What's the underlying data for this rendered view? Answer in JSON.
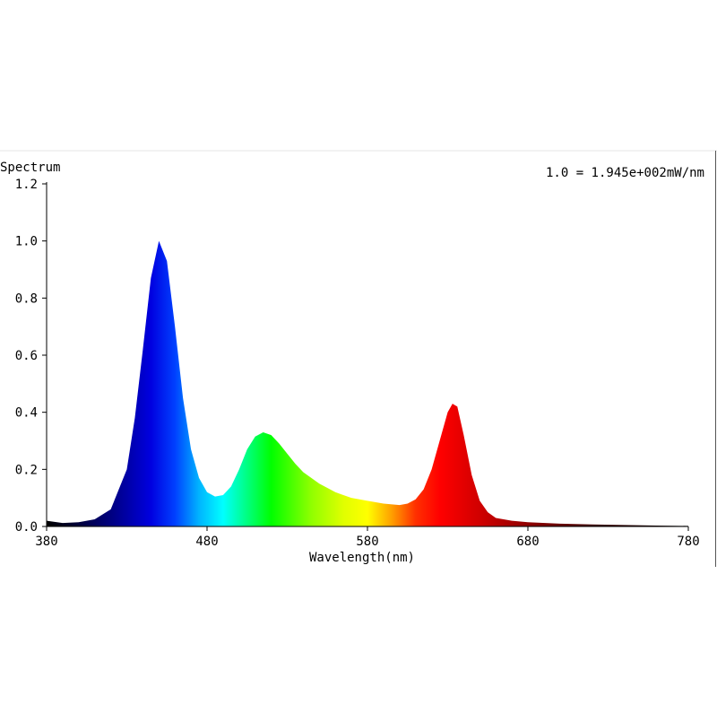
{
  "chart_data": {
    "type": "area",
    "title": "Spectrum",
    "scale_note": "1.0 = 1.945e+002mW/nm",
    "xlabel": "Wavelength(nm)",
    "ylabel": "",
    "xlim": [
      380,
      780
    ],
    "ylim": [
      0,
      1.2
    ],
    "x_ticks": [
      "380",
      "480",
      "580",
      "680",
      "780"
    ],
    "y_ticks": [
      "0.0",
      "0.2",
      "0.4",
      "0.6",
      "0.8",
      "1.0",
      "1.2"
    ],
    "grid": false,
    "fill": "wavelength-color gradient",
    "series": [
      {
        "x": [
          380,
          390,
          400,
          410,
          420,
          430,
          435,
          440,
          445,
          450,
          455,
          460,
          465,
          470,
          475,
          480,
          485,
          490,
          495,
          500,
          505,
          510,
          515,
          520,
          525,
          530,
          535,
          540,
          550,
          560,
          570,
          580,
          590,
          600,
          605,
          610,
          615,
          620,
          625,
          630,
          633,
          636,
          640,
          645,
          650,
          655,
          660,
          670,
          680,
          700,
          720,
          740,
          760,
          780
        ],
        "values": [
          0.02,
          0.012,
          0.015,
          0.025,
          0.06,
          0.2,
          0.38,
          0.62,
          0.87,
          1.0,
          0.93,
          0.7,
          0.45,
          0.27,
          0.17,
          0.12,
          0.105,
          0.11,
          0.14,
          0.2,
          0.27,
          0.315,
          0.33,
          0.32,
          0.29,
          0.255,
          0.22,
          0.19,
          0.15,
          0.12,
          0.1,
          0.09,
          0.08,
          0.075,
          0.08,
          0.095,
          0.13,
          0.2,
          0.3,
          0.4,
          0.43,
          0.42,
          0.32,
          0.18,
          0.09,
          0.05,
          0.03,
          0.02,
          0.015,
          0.01,
          0.007,
          0.005,
          0.003,
          0.002
        ]
      }
    ],
    "spectrum_colors": [
      {
        "nm": 380,
        "color": "#000000"
      },
      {
        "nm": 400,
        "color": "#00003a"
      },
      {
        "nm": 420,
        "color": "#000080"
      },
      {
        "nm": 445,
        "color": "#0000e0"
      },
      {
        "nm": 460,
        "color": "#0040ff"
      },
      {
        "nm": 475,
        "color": "#00b4ff"
      },
      {
        "nm": 490,
        "color": "#00ffff"
      },
      {
        "nm": 505,
        "color": "#00ff80"
      },
      {
        "nm": 520,
        "color": "#00ff00"
      },
      {
        "nm": 545,
        "color": "#90ff00"
      },
      {
        "nm": 565,
        "color": "#e0ff00"
      },
      {
        "nm": 580,
        "color": "#ffff00"
      },
      {
        "nm": 595,
        "color": "#ffa000"
      },
      {
        "nm": 610,
        "color": "#ff3000"
      },
      {
        "nm": 625,
        "color": "#ff0000"
      },
      {
        "nm": 650,
        "color": "#d00000"
      },
      {
        "nm": 680,
        "color": "#900000"
      },
      {
        "nm": 720,
        "color": "#400000"
      },
      {
        "nm": 780,
        "color": "#000000"
      }
    ]
  }
}
